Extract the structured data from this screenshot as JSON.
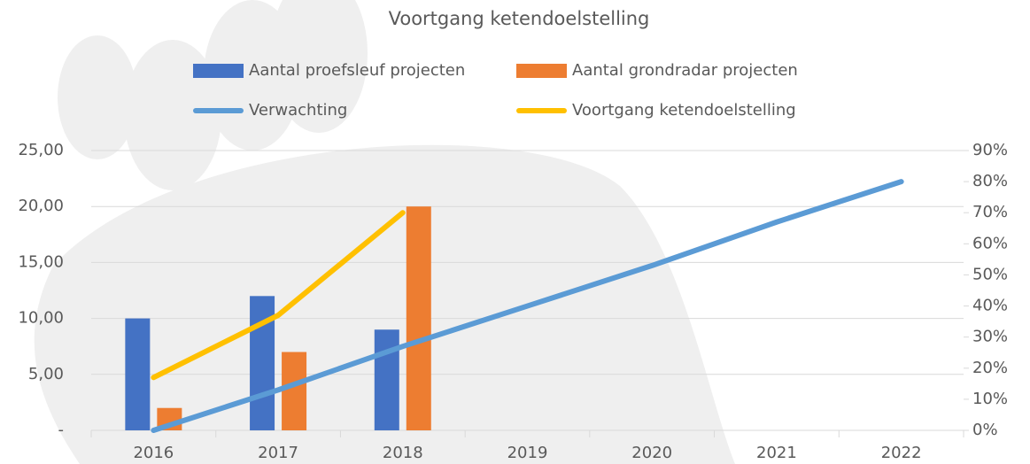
{
  "chart_data": {
    "type": "bar",
    "title": "Voortgang ketendoelstelling",
    "categories": [
      "2016",
      "2017",
      "2018",
      "2019",
      "2020",
      "2021",
      "2022"
    ],
    "series": [
      {
        "name": "Aantal proefsleuf projecten",
        "type": "bar",
        "color": "#4472c4",
        "values": [
          10,
          12,
          9,
          null,
          null,
          null,
          null
        ]
      },
      {
        "name": "Aantal grondradar projecten",
        "type": "bar",
        "color": "#ed7d31",
        "values": [
          2,
          7,
          20,
          null,
          null,
          null,
          null
        ]
      },
      {
        "name": "Verwachting",
        "type": "line",
        "axis": "y2",
        "color": "#5b9bd5",
        "values": [
          0,
          13,
          27,
          40,
          53,
          67,
          80
        ]
      },
      {
        "name": "Voortgang ketendoelstelling",
        "type": "line",
        "axis": "y2",
        "color": "#ffc000",
        "values": [
          17,
          37,
          70,
          null,
          null,
          null,
          null
        ]
      }
    ],
    "ylim": [
      0,
      25
    ],
    "yticks": [
      {
        "value": 0,
        "label": "-"
      },
      {
        "value": 5,
        "label": "5,00"
      },
      {
        "value": 10,
        "label": "10,00"
      },
      {
        "value": 15,
        "label": "15,00"
      },
      {
        "value": 20,
        "label": "20,00"
      },
      {
        "value": 25,
        "label": "25,00"
      }
    ],
    "y2lim": [
      0,
      90
    ],
    "y2ticks": [
      {
        "value": 0,
        "label": "0%"
      },
      {
        "value": 10,
        "label": "10%"
      },
      {
        "value": 20,
        "label": "20%"
      },
      {
        "value": 30,
        "label": "30%"
      },
      {
        "value": 40,
        "label": "40%"
      },
      {
        "value": 50,
        "label": "50%"
      },
      {
        "value": 60,
        "label": "60%"
      },
      {
        "value": 70,
        "label": "70%"
      },
      {
        "value": 80,
        "label": "80%"
      },
      {
        "value": 90,
        "label": "90%"
      }
    ],
    "grid": true,
    "legend": "top"
  }
}
